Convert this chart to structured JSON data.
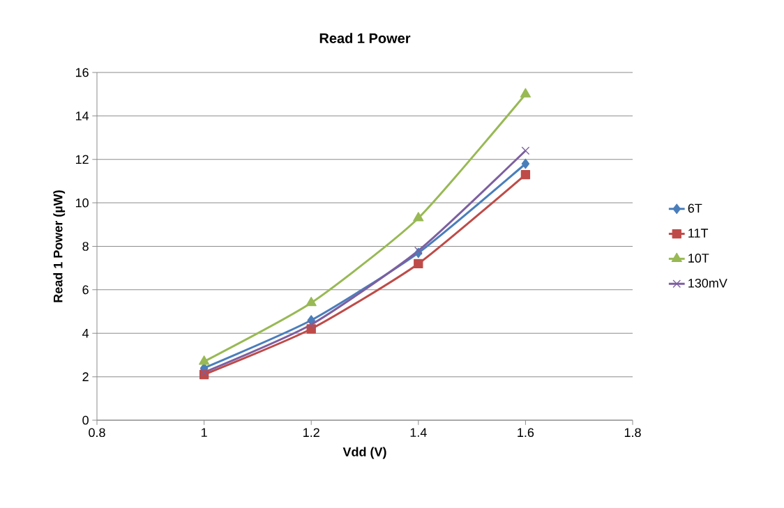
{
  "chart_data": {
    "type": "line",
    "title": "Read 1 Power",
    "xlabel": "Vdd (V)",
    "ylabel": "Read 1 Power (µW)",
    "x": [
      1,
      1.2,
      1.4,
      1.6
    ],
    "series": [
      {
        "name": "6T",
        "color": "#4a7ebb",
        "marker": "diamond",
        "values": [
          2.4,
          4.6,
          7.7,
          11.8
        ]
      },
      {
        "name": "11T",
        "color": "#be4b48",
        "marker": "square",
        "values": [
          2.1,
          4.2,
          7.2,
          11.3
        ]
      },
      {
        "name": "10T",
        "color": "#98b954",
        "marker": "triangle",
        "values": [
          2.7,
          5.4,
          9.3,
          15.0
        ]
      },
      {
        "name": "130mV",
        "color": "#7d5fa0",
        "marker": "cross",
        "values": [
          2.2,
          4.4,
          7.8,
          12.4
        ]
      }
    ],
    "xlim": [
      0.8,
      1.8
    ],
    "ylim": [
      0,
      16
    ],
    "xticks": [
      0.8,
      1,
      1.2,
      1.4,
      1.6,
      1.8
    ],
    "yticks": [
      0,
      2,
      4,
      6,
      8,
      10,
      12,
      14,
      16
    ],
    "grid": "y",
    "legend": "right"
  }
}
